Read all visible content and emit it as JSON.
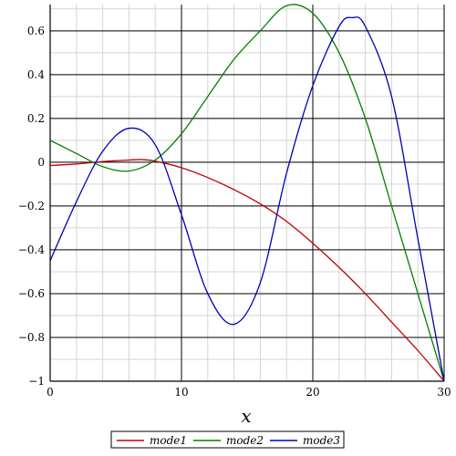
{
  "chart_data": {
    "type": "line",
    "title": "",
    "xlabel": "x",
    "ylabel": "",
    "xlim": [
      0,
      30
    ],
    "ylim": [
      -1,
      0.72
    ],
    "grid": true,
    "legend": "bottom",
    "x_ticks": [
      0,
      10,
      20,
      30
    ],
    "y_ticks": [
      -1,
      -0.8,
      -0.6,
      -0.4,
      -0.2,
      0,
      0.2,
      0.4,
      0.6
    ],
    "y_tick_labels": [
      "−1",
      "−0.8",
      "−0.6",
      "−0.4",
      "−0.2",
      "0",
      "0.2",
      "0.4",
      "0.6"
    ],
    "series": [
      {
        "name": "mode1",
        "color": "#c00000",
        "x": [
          0,
          2,
          4,
          6,
          7,
          8,
          10,
          12,
          14,
          16,
          18,
          20,
          22,
          24,
          26,
          28,
          30
        ],
        "y": [
          -0.015,
          -0.008,
          0.003,
          0.01,
          0.012,
          0.005,
          -0.025,
          -0.07,
          -0.125,
          -0.19,
          -0.27,
          -0.37,
          -0.48,
          -0.6,
          -0.73,
          -0.86,
          -1.0
        ]
      },
      {
        "name": "mode2",
        "color": "#008000",
        "x": [
          0,
          2,
          4,
          6,
          8,
          10,
          12,
          14,
          16,
          18,
          20,
          22,
          24,
          26,
          28,
          30
        ],
        "y": [
          0.1,
          0.04,
          -0.02,
          -0.04,
          0.01,
          0.13,
          0.3,
          0.47,
          0.6,
          0.715,
          0.68,
          0.5,
          0.2,
          -0.2,
          -0.6,
          -1.0
        ]
      },
      {
        "name": "mode3",
        "color": "#0000b0",
        "x": [
          0,
          2,
          4,
          6,
          8,
          10,
          12,
          14,
          16,
          18,
          20,
          22,
          23,
          24,
          26,
          28,
          30
        ],
        "y": [
          -0.45,
          -0.18,
          0.05,
          0.155,
          0.08,
          -0.24,
          -0.6,
          -0.74,
          -0.55,
          -0.05,
          0.35,
          0.62,
          0.66,
          0.62,
          0.3,
          -0.35,
          -1.0
        ]
      }
    ]
  }
}
